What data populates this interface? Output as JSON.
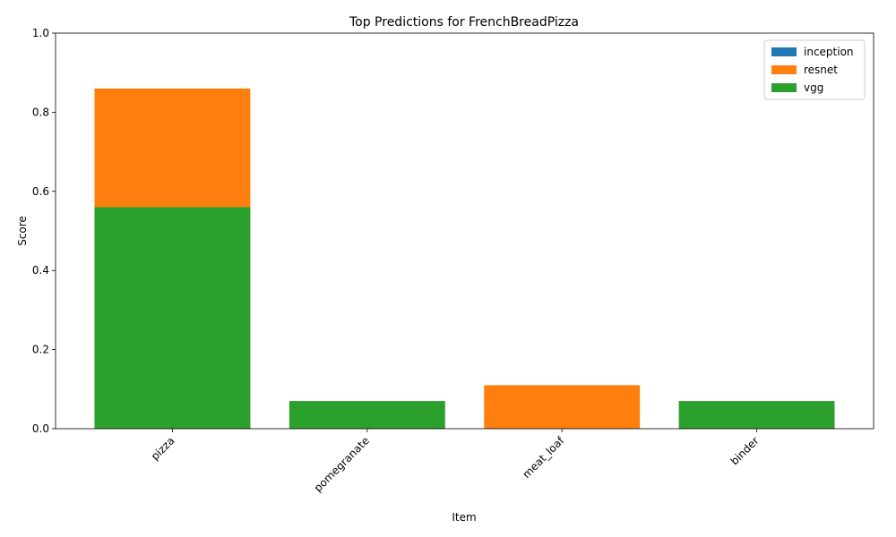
{
  "chart_data": {
    "type": "bar",
    "barmode": "overlay",
    "title": "Top Predictions for FrenchBreadPizza",
    "xlabel": "Item",
    "ylabel": "Score",
    "categories": [
      "pizza",
      "pomegranate",
      "meat_loaf",
      "binder"
    ],
    "series": [
      {
        "name": "inception",
        "color": "#1f77b4",
        "values": [
          0,
          0,
          0,
          0
        ]
      },
      {
        "name": "resnet",
        "color": "#ff7f0e",
        "values": [
          0.86,
          0,
          0.11,
          0
        ]
      },
      {
        "name": "vgg",
        "color": "#2ca02c",
        "values": [
          0.56,
          0.07,
          0,
          0.07
        ]
      }
    ],
    "ylim": [
      0,
      1
    ],
    "yticks": [
      0.0,
      0.2,
      0.4,
      0.6,
      0.8,
      1.0
    ],
    "legend": "upper right"
  }
}
